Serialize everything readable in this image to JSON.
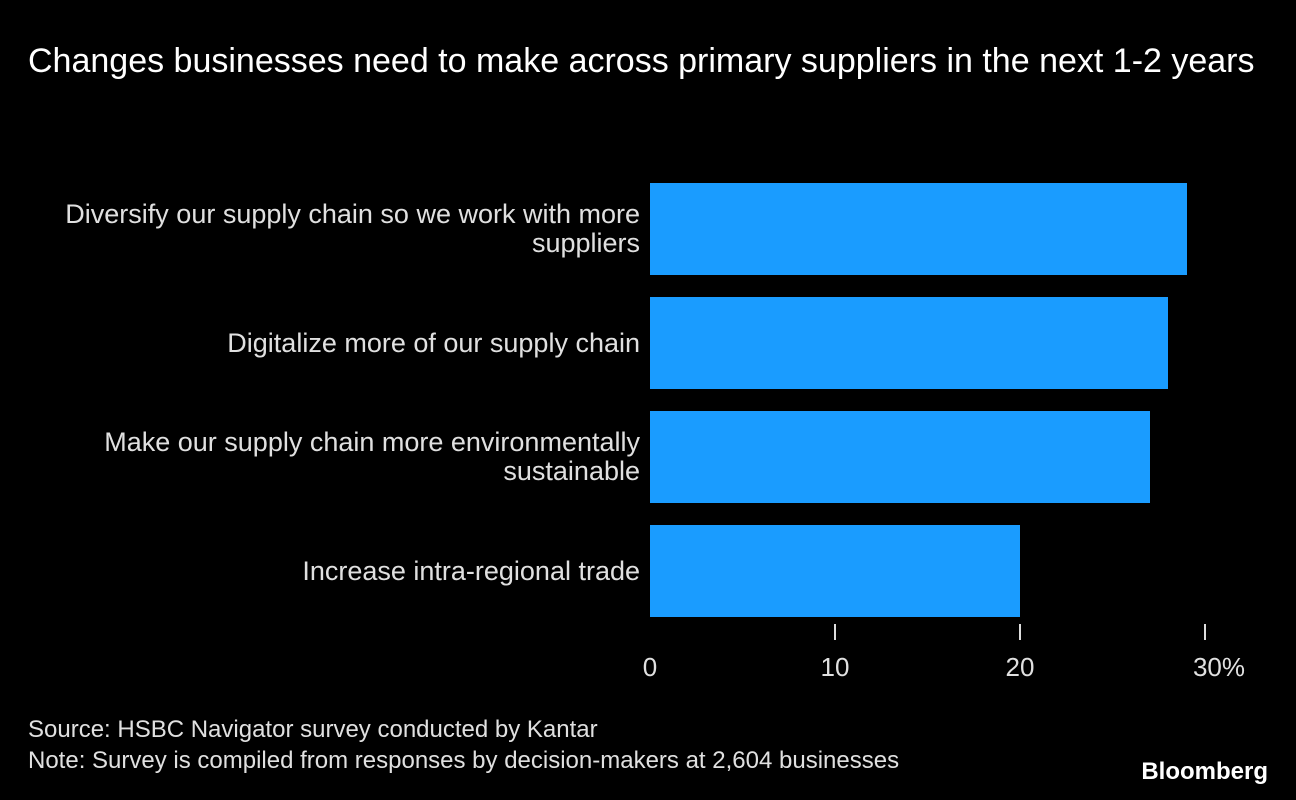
{
  "chart_data": {
    "type": "hbar",
    "title": "Changes businesses need to make across primary suppliers in the next 1-2 years",
    "categories": [
      "Diversify our supply chain so we work with more suppliers",
      "Digitalize more of our supply chain",
      "Make our supply chain more environmentally sustainable",
      "Increase intra-regional trade"
    ],
    "values": [
      29,
      28,
      27,
      20
    ],
    "color": "#1a9cff",
    "xlim": [
      0,
      32
    ],
    "xticks": [
      0,
      10,
      20,
      {
        "value": 30,
        "label": "30%"
      }
    ],
    "source": "Source: HSBC Navigator survey conducted by Kantar",
    "note": "Note: Survey is compiled from responses by decision-makers at 2,604 businesses",
    "brand": "Bloomberg"
  }
}
